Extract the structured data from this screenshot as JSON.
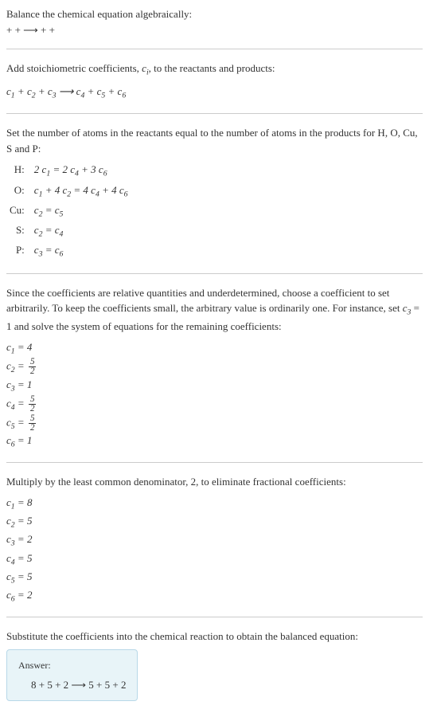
{
  "intro": {
    "line1": "Balance the chemical equation algebraically:",
    "line2": " +  +  ⟶  +  + "
  },
  "stoich": {
    "text": "Add stoichiometric coefficients, ",
    "ci": "c",
    "ci_sub": "i",
    "text2": ", to the reactants and products:",
    "eq_parts": [
      "c",
      "1",
      " + ",
      "c",
      "2",
      " + ",
      "c",
      "3",
      "  ⟶  ",
      "c",
      "4",
      " + ",
      "c",
      "5",
      " + ",
      "c",
      "6"
    ]
  },
  "atoms": {
    "intro": "Set the number of atoms in the reactants equal to the number of atoms in the products for H, O, Cu, S and P:",
    "rows": [
      {
        "label": "H:",
        "eq": "2 c₁ = 2 c₄ + 3 c₆"
      },
      {
        "label": "O:",
        "eq": "c₁ + 4 c₂ = 4 c₄ + 4 c₆"
      },
      {
        "label": "Cu:",
        "eq": "c₂ = c₅"
      },
      {
        "label": "S:",
        "eq": "c₂ = c₄"
      },
      {
        "label": "P:",
        "eq": "c₃ = c₆"
      }
    ]
  },
  "solve": {
    "intro": "Since the coefficients are relative quantities and underdetermined, choose a coefficient to set arbitrarily. To keep the coefficients small, the arbitrary value is ordinarily one. For instance, set c₃ = 1 and solve the system of equations for the remaining coefficients:",
    "coeffs": [
      {
        "c": "c",
        "sub": "1",
        "val": "4",
        "frac": null
      },
      {
        "c": "c",
        "sub": "2",
        "val": null,
        "frac": {
          "num": "5",
          "den": "2"
        }
      },
      {
        "c": "c",
        "sub": "3",
        "val": "1",
        "frac": null
      },
      {
        "c": "c",
        "sub": "4",
        "val": null,
        "frac": {
          "num": "5",
          "den": "2"
        }
      },
      {
        "c": "c",
        "sub": "5",
        "val": null,
        "frac": {
          "num": "5",
          "den": "2"
        }
      },
      {
        "c": "c",
        "sub": "6",
        "val": "1",
        "frac": null
      }
    ]
  },
  "mult": {
    "intro": "Multiply by the least common denominator, 2, to eliminate fractional coefficients:",
    "coeffs": [
      {
        "sub": "1",
        "val": "8"
      },
      {
        "sub": "2",
        "val": "5"
      },
      {
        "sub": "3",
        "val": "2"
      },
      {
        "sub": "4",
        "val": "5"
      },
      {
        "sub": "5",
        "val": "5"
      },
      {
        "sub": "6",
        "val": "2"
      }
    ]
  },
  "final": {
    "intro": "Substitute the coefficients into the chemical reaction to obtain the balanced equation:",
    "answer_label": "Answer:",
    "answer_eq": "8  + 5  + 2  ⟶ 5  + 5  + 2 "
  }
}
